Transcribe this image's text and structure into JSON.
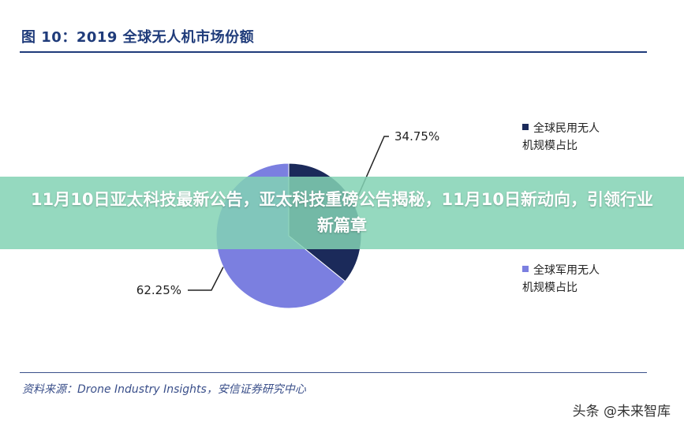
{
  "figure_title": "图 10：2019 全球无人机市场份额",
  "source_text": "资料来源：Drone Industry Insights，安信证券研究中心",
  "banner_text": "11月10日亚太科技最新公告，亚太科技重磅公告揭秘，11月10日新动向，引领行业新篇章",
  "watermark_text": "头条 @未来智库",
  "chart_data": {
    "type": "pie",
    "title": "2019 全球无人机市场份额",
    "series": [
      {
        "name": "全球民用无人机规模占比",
        "value": 34.75,
        "label": "34.75%",
        "color": "#1b2a5a"
      },
      {
        "name": "全球军用无人机规模占比",
        "value": 62.25,
        "label": "62.25%",
        "color": "#7b7fe0"
      }
    ],
    "legend_position": "right"
  }
}
